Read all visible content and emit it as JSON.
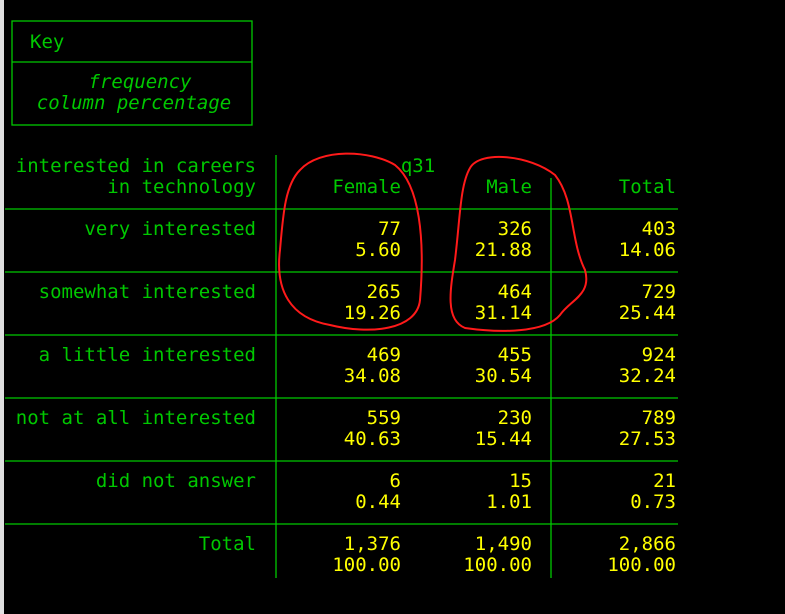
{
  "key": {
    "title": "Key",
    "lines": [
      "frequency",
      "column percentage"
    ]
  },
  "table": {
    "row_header": [
      "interested in careers",
      "in technology"
    ],
    "column_group": "q31",
    "columns": [
      "Female",
      "Male",
      "Total"
    ],
    "rows": [
      {
        "label": "very interested",
        "cells": [
          [
            "77",
            "5.60"
          ],
          [
            "326",
            "21.88"
          ],
          [
            "403",
            "14.06"
          ]
        ]
      },
      {
        "label": "somewhat interested",
        "cells": [
          [
            "265",
            "19.26"
          ],
          [
            "464",
            "31.14"
          ],
          [
            "729",
            "25.44"
          ]
        ]
      },
      {
        "label": "a little interested",
        "cells": [
          [
            "469",
            "34.08"
          ],
          [
            "455",
            "30.54"
          ],
          [
            "924",
            "32.24"
          ]
        ]
      },
      {
        "label": "not at all interested",
        "cells": [
          [
            "559",
            "40.63"
          ],
          [
            "230",
            "15.44"
          ],
          [
            "789",
            "27.53"
          ]
        ]
      },
      {
        "label": "did not answer",
        "cells": [
          [
            "6",
            "0.44"
          ],
          [
            "15",
            "1.01"
          ],
          [
            "21",
            "0.73"
          ]
        ]
      },
      {
        "label": "Total",
        "cells": [
          [
            "1,376",
            "100.00"
          ],
          [
            "1,490",
            "100.00"
          ],
          [
            "2,866",
            "100.00"
          ]
        ]
      }
    ]
  }
}
